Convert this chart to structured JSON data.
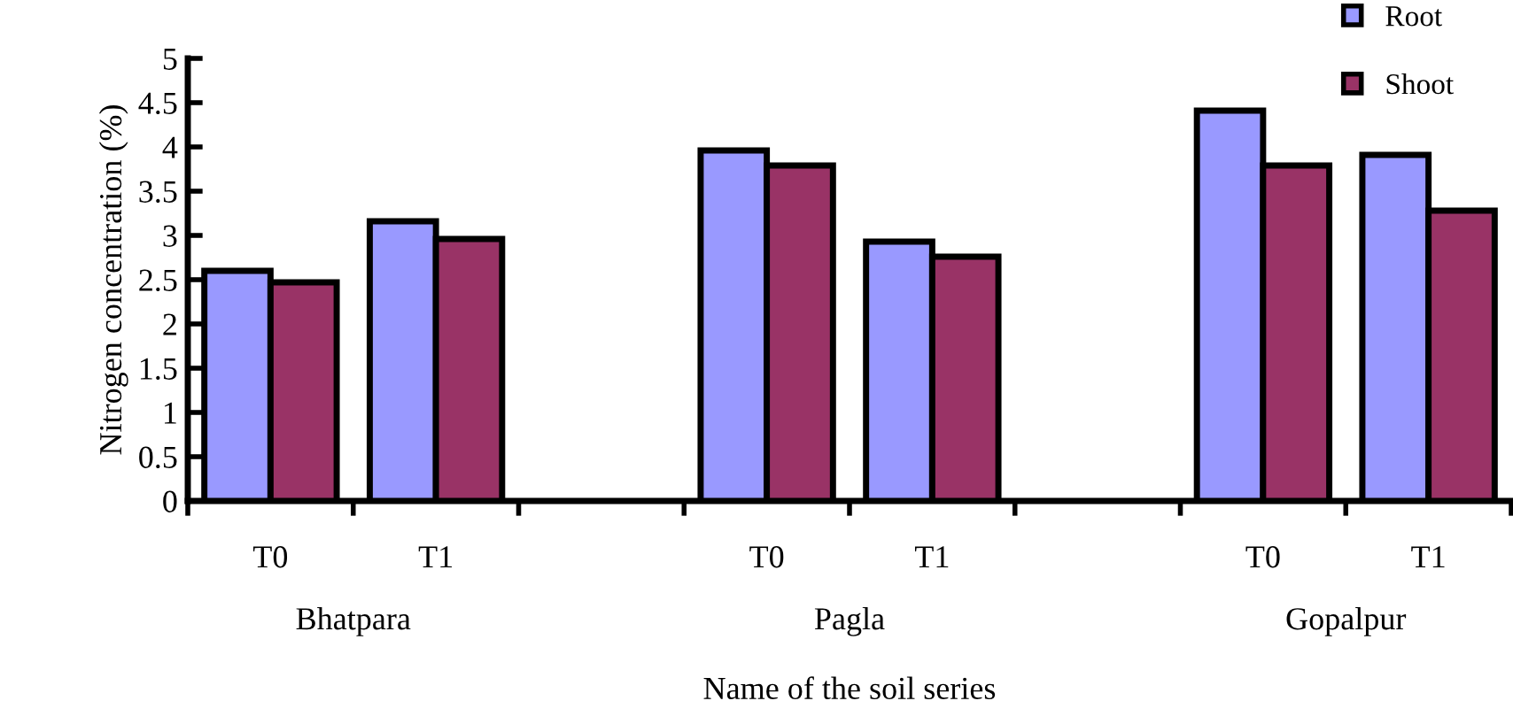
{
  "chart_data": {
    "type": "bar",
    "xlabel": "Name of the soil series",
    "ylabel": "Nitrogen concentration (%)",
    "categories": [
      "T0",
      "T1",
      null,
      "T0",
      "T1",
      null,
      "T0",
      "T1"
    ],
    "series": [
      {
        "name": "Root",
        "color": "#9999ff",
        "values": [
          2.6,
          3.16,
          null,
          3.96,
          2.93,
          null,
          4.41,
          3.91
        ]
      },
      {
        "name": "Shoot",
        "color": "#993366",
        "values": [
          2.47,
          2.96,
          null,
          3.79,
          2.76,
          null,
          3.79,
          3.28
        ]
      }
    ],
    "annotations": [
      "Bhatpara",
      "Pagla",
      "Gopalpur"
    ],
    "ylim": [
      0,
      5
    ],
    "yticks": [
      0,
      0.5,
      1,
      1.5,
      2,
      2.5,
      3,
      3.5,
      4,
      4.5,
      5
    ],
    "grid": false,
    "legend": "top right"
  }
}
